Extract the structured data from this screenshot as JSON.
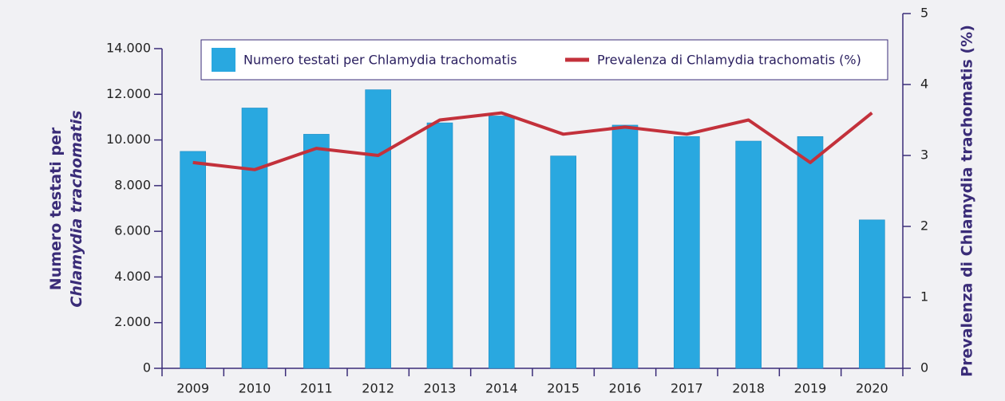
{
  "chart_data": {
    "type": "bar_line",
    "categories": [
      "2009",
      "2010",
      "2011",
      "2012",
      "2013",
      "2014",
      "2015",
      "2016",
      "2017",
      "2018",
      "2019",
      "2020"
    ],
    "series": [
      {
        "name": "Numero testati per Chlamydia trachomatis",
        "type": "bar",
        "color": "#29a8e0",
        "axis": "y",
        "values": [
          9500,
          11400,
          10250,
          12200,
          10750,
          11050,
          9300,
          10650,
          10150,
          9950,
          10150,
          6500
        ]
      },
      {
        "name": "Prevalenza di Chlamydia trachomatis (%)",
        "type": "line",
        "color": "#c3313b",
        "axis": "y2",
        "values": [
          2.9,
          2.8,
          3.1,
          3.0,
          3.5,
          3.6,
          3.3,
          3.4,
          3.3,
          3.5,
          2.9,
          3.6
        ]
      }
    ],
    "ylabel": [
      "Numero testati per",
      "Chlamydia trachomatis"
    ],
    "y2label": "Prevalenza di Chlamydia trachomatis (%)",
    "ylim": [
      0,
      14000
    ],
    "yticks": [
      0,
      {
        "value": 2000,
        "label": "2.000"
      },
      {
        "value": 4000,
        "label": "4.000"
      },
      {
        "value": 6000,
        "label": "6.000"
      },
      {
        "value": 8000,
        "label": "8.000"
      },
      {
        "value": 10000,
        "label": "10.000"
      },
      {
        "value": 12000,
        "label": "12.000"
      },
      {
        "value": 14000,
        "label": "14.000"
      }
    ],
    "y2lim": [
      0,
      5
    ],
    "y2ticks": [
      0,
      1,
      2,
      3,
      4,
      5
    ],
    "axis_color": "#3a2c78",
    "legend": "top"
  }
}
